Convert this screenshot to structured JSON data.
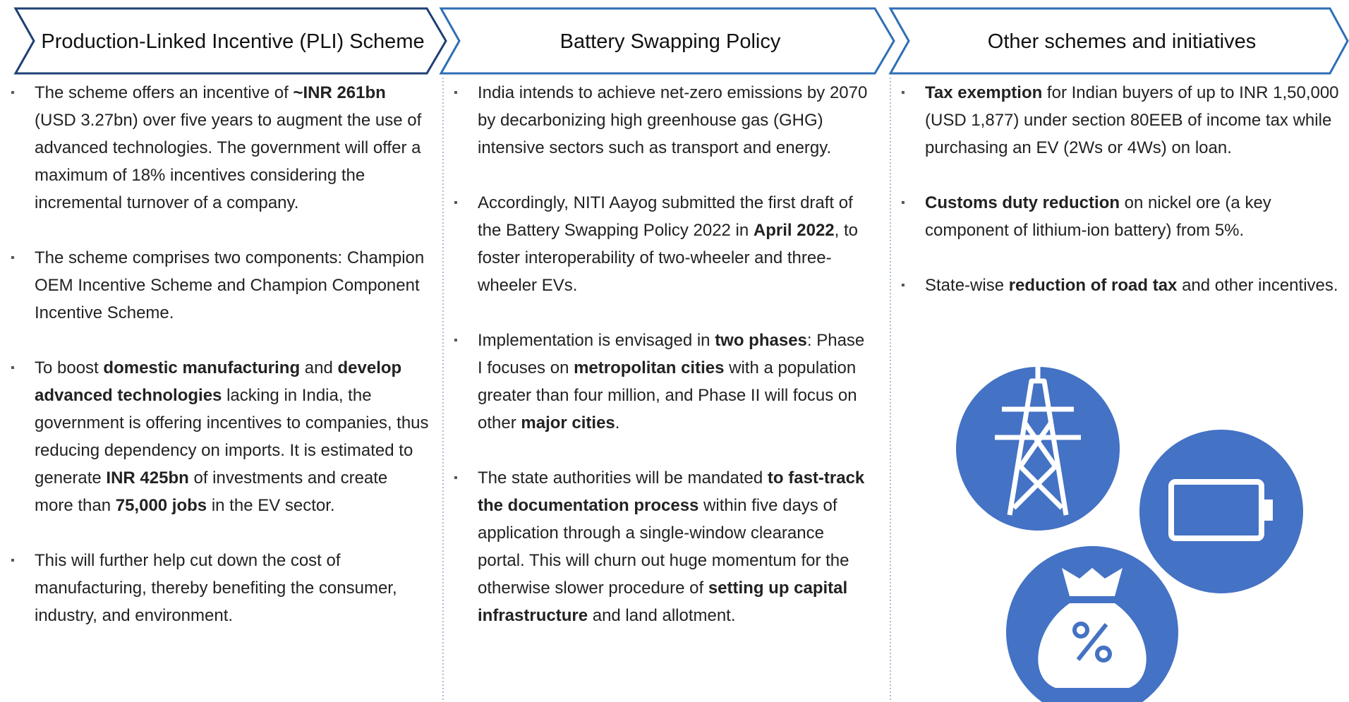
{
  "columns": [
    {
      "title": "Production-Linked Incentive (PLI) Scheme",
      "bullets": [
        [
          "The scheme offers an incentive of ",
          {
            "text": "~INR 261bn",
            "bold": true
          },
          " (USD 3.27bn) over five years to augment the use of advanced technologies. The government will offer a maximum of 18% incentives considering the incremental turnover of a company."
        ],
        [
          "The scheme comprises two components: Champion OEM Incentive Scheme and Champion Component Incentive Scheme."
        ],
        [
          "To boost ",
          {
            "text": "domestic manufacturing",
            "bold": true
          },
          " and ",
          {
            "text": "develop advanced technologies",
            "bold": true
          },
          " lacking in India, the government is offering incentives to companies, thus reducing dependency on imports. It is estimated to generate ",
          {
            "text": "INR 425bn",
            "bold": true
          },
          " of investments and create more than ",
          {
            "text": "75,000 jobs",
            "bold": true
          },
          " in the EV sector."
        ],
        [
          "This will further help cut down the cost of manufacturing, thereby benefiting the consumer, industry, and environment."
        ]
      ]
    },
    {
      "title": "Battery Swapping Policy",
      "bullets": [
        [
          "India intends to achieve net-zero emissions by 2070 by decarbonizing high greenhouse gas (GHG) intensive sectors such as transport and energy."
        ],
        [
          "Accordingly, NITI Aayog submitted the first draft of the Battery Swapping Policy 2022 in ",
          {
            "text": "April 2022",
            "bold": true
          },
          ", to foster interoperability of two-wheeler and three-wheeler EVs."
        ],
        [
          "Implementation is envisaged in ",
          {
            "text": "two phases",
            "bold": true
          },
          ": Phase I focuses on ",
          {
            "text": "metropolitan cities",
            "bold": true
          },
          " with a population greater than four million, and Phase II will focus on other ",
          {
            "text": "major cities",
            "bold": true
          },
          "."
        ],
        [
          "The state authorities will be mandated ",
          {
            "text": "to fast-track the documentation process",
            "bold": true
          },
          " within five days of application through a single-window clearance portal. This will churn out huge momentum for the otherwise slower procedure of ",
          {
            "text": "setting up capital infrastructure",
            "bold": true
          },
          " and land allotment."
        ]
      ]
    },
    {
      "title": "Other schemes and initiatives",
      "bullets": [
        [
          {
            "text": "Tax exemption",
            "bold": true
          },
          " for Indian buyers of up to INR 1,50,000 (USD 1,877) under section 80EEB of income tax while purchasing an EV (2Ws or 4Ws) on loan."
        ],
        [
          {
            "text": "Customs duty reduction",
            "bold": true
          },
          " on nickel ore (a key component of lithium-ion battery) from 5%."
        ],
        [
          "State-wise ",
          {
            "text": "reduction of road tax",
            "bold": true
          },
          " and other incentives."
        ]
      ]
    }
  ]
}
